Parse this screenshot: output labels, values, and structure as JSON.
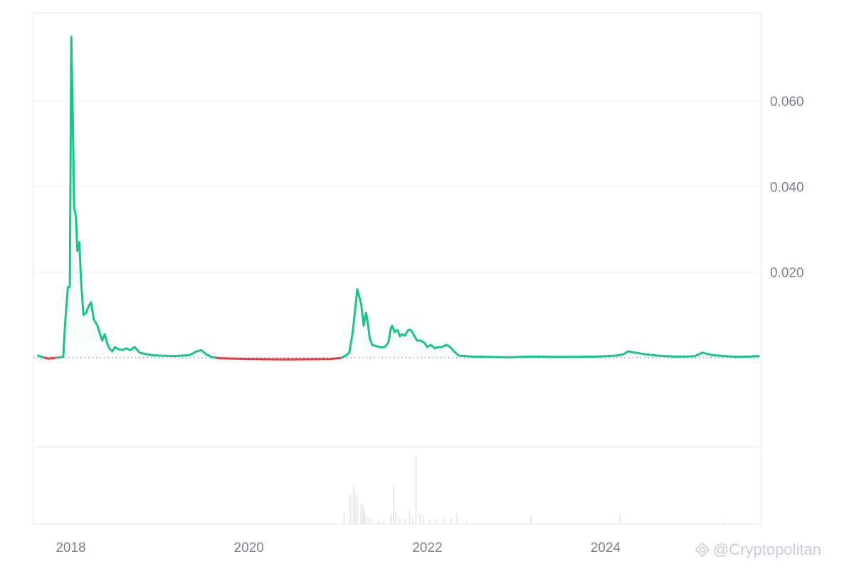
{
  "chart_data": {
    "type": "area",
    "x_axis": {
      "type": "date",
      "tick_labels": [
        "2018",
        "2020",
        "2022",
        "2024"
      ]
    },
    "y_axis": {
      "position": "right",
      "tick_values": [
        0.02,
        0.04,
        0.06
      ],
      "tick_labels": [
        "0.020",
        "0.040",
        "0.060"
      ],
      "range": [
        -0.02,
        0.08
      ]
    },
    "baseline": 0.0,
    "colors": {
      "above_baseline": "#16c784",
      "below_baseline": "#ea3943",
      "baseline_dotted": "#7a8290",
      "grid": "#eceef1",
      "volume": "#e3e6ea"
    },
    "series": [
      {
        "values_x": [
          "2017-08-20",
          "2017-09-10",
          "2017-10-01",
          "2017-11-01",
          "2017-12-01",
          "2017-12-10",
          "2017-12-20",
          "2017-12-28",
          "2018-01-03",
          "2018-01-08",
          "2018-01-15",
          "2018-01-22",
          "2018-01-28",
          "2018-02-05",
          "2018-02-12",
          "2018-02-22",
          "2018-03-05",
          "2018-03-15",
          "2018-03-25",
          "2018-04-05",
          "2018-04-15",
          "2018-04-20",
          "2018-04-28",
          "2018-05-10",
          "2018-05-20",
          "2018-06-01",
          "2018-06-10",
          "2018-06-20",
          "2018-07-01",
          "2018-07-15",
          "2018-08-01",
          "2018-08-15",
          "2018-09-01",
          "2018-09-20",
          "2018-10-10",
          "2018-10-25",
          "2018-11-10",
          "2018-12-01",
          "2019-01-01",
          "2019-03-01",
          "2019-05-01",
          "2019-06-01",
          "2019-06-20",
          "2019-07-10",
          "2019-08-01",
          "2019-09-01",
          "2020-01-01",
          "2020-06-01",
          "2020-12-01",
          "2021-01-15",
          "2021-02-01",
          "2021-02-15",
          "2021-03-01",
          "2021-03-20",
          "2021-04-05",
          "2021-04-15",
          "2021-04-25",
          "2021-05-01",
          "2021-05-10",
          "2021-05-20",
          "2021-06-01",
          "2021-06-20",
          "2021-07-10",
          "2021-07-25",
          "2021-08-05",
          "2021-08-10",
          "2021-08-20",
          "2021-09-01",
          "2021-09-10",
          "2021-09-20",
          "2021-10-01",
          "2021-10-15",
          "2021-10-25",
          "2021-11-05",
          "2021-11-20",
          "2021-12-05",
          "2021-12-20",
          "2022-01-01",
          "2022-01-15",
          "2022-02-01",
          "2022-02-15",
          "2022-03-01",
          "2022-03-20",
          "2022-04-05",
          "2022-04-20",
          "2022-05-10",
          "2022-06-01",
          "2022-07-01",
          "2022-09-01",
          "2022-12-01",
          "2023-03-01",
          "2023-06-01",
          "2023-09-01",
          "2023-12-01",
          "2024-01-15",
          "2024-02-15",
          "2024-03-15",
          "2024-04-01",
          "2024-05-01",
          "2024-06-15",
          "2024-08-01",
          "2024-10-01",
          "2024-12-01",
          "2025-01-01",
          "2025-02-01",
          "2025-03-15",
          "2025-05-01",
          "2025-07-01",
          "2025-08-15",
          "2025-09-20"
        ],
        "values": [
          0.0005,
          0.0001,
          -0.0002,
          0.0,
          0.0002,
          0.009,
          0.0165,
          0.0165,
          0.075,
          0.06,
          0.035,
          0.033,
          0.025,
          0.027,
          0.018,
          0.01,
          0.0105,
          0.012,
          0.013,
          0.009,
          0.008,
          0.0075,
          0.006,
          0.004,
          0.0055,
          0.003,
          0.002,
          0.0015,
          0.0025,
          0.002,
          0.0018,
          0.0022,
          0.0018,
          0.0025,
          0.0012,
          0.001,
          0.0008,
          0.0006,
          0.0005,
          0.0004,
          0.0006,
          0.0015,
          0.0018,
          0.0008,
          0.0002,
          -0.0001,
          -0.0003,
          -0.0004,
          -0.0003,
          0.0,
          0.0005,
          0.0012,
          0.006,
          0.016,
          0.0125,
          0.0075,
          0.0105,
          0.0085,
          0.0045,
          0.003,
          0.0028,
          0.0025,
          0.0025,
          0.0035,
          0.007,
          0.0075,
          0.006,
          0.0065,
          0.005,
          0.0055,
          0.0052,
          0.0065,
          0.0065,
          0.0055,
          0.004,
          0.004,
          0.0035,
          0.0025,
          0.003,
          0.0022,
          0.0025,
          0.0025,
          0.003,
          0.0025,
          0.0015,
          0.0005,
          0.0004,
          0.0003,
          0.0002,
          0.0001,
          0.0003,
          0.0002,
          0.0002,
          0.0003,
          0.0004,
          0.0005,
          0.0008,
          0.0015,
          0.0012,
          0.0008,
          0.0005,
          0.0003,
          0.0003,
          0.0004,
          0.0012,
          0.0006,
          0.0004,
          0.0002,
          0.0003,
          0.0004
        ]
      }
    ],
    "volume": {
      "values_x": [
        "2018-01-05",
        "2018-06-01",
        "2019-05-01",
        "2021-01-25",
        "2021-02-20",
        "2021-03-05",
        "2021-03-12",
        "2021-03-20",
        "2021-04-05",
        "2021-04-12",
        "2021-04-18",
        "2021-04-25",
        "2021-05-10",
        "2021-05-25",
        "2021-06-15",
        "2021-07-05",
        "2021-08-05",
        "2021-08-15",
        "2021-08-25",
        "2021-09-10",
        "2021-10-01",
        "2021-10-20",
        "2021-11-01",
        "2021-11-15",
        "2021-12-01",
        "2021-12-15",
        "2022-01-10",
        "2022-02-10",
        "2022-03-10",
        "2022-04-10",
        "2022-05-01",
        "2022-06-10",
        "2023-03-01",
        "2024-03-01",
        "2025-05-01"
      ],
      "values": [
        0.02,
        0.01,
        0.01,
        0.15,
        0.42,
        0.55,
        0.45,
        0.38,
        0.3,
        0.28,
        0.2,
        0.12,
        0.1,
        0.08,
        0.06,
        0.05,
        0.15,
        0.55,
        0.2,
        0.1,
        0.08,
        0.2,
        0.1,
        1.0,
        0.15,
        0.12,
        0.08,
        0.06,
        0.08,
        0.1,
        0.15,
        0.05,
        0.13,
        0.15,
        0.03
      ]
    }
  },
  "watermark": {
    "text": "@Cryptopolitan",
    "icon": "binance-diamond-icon"
  }
}
